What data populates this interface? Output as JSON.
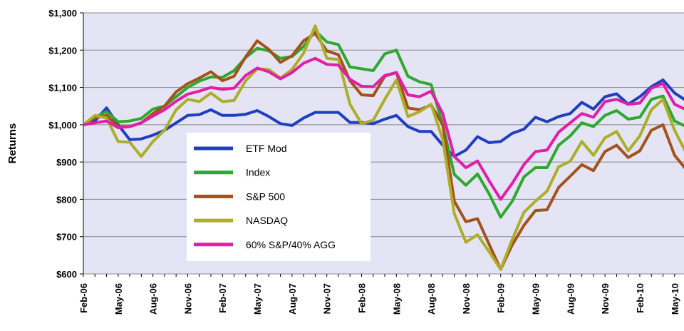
{
  "chart_data": {
    "type": "line",
    "y_label": "Returns",
    "categories": [
      "Feb-06",
      null,
      null,
      "May-06",
      null,
      null,
      "Aug-06",
      null,
      null,
      "Nov-06",
      null,
      null,
      "Feb-07",
      null,
      null,
      "May-07",
      null,
      null,
      "Aug-07",
      null,
      null,
      "Nov-07",
      null,
      null,
      "Feb-08",
      null,
      null,
      "May-08",
      null,
      null,
      "Aug-08",
      null,
      null,
      "Nov-08",
      null,
      null,
      "Feb-09",
      null,
      null,
      "May-09",
      null,
      null,
      "Aug-09",
      null,
      null,
      "Nov-09",
      null,
      null,
      "Feb-10",
      null,
      null,
      "May-10",
      null
    ],
    "ylim": [
      600,
      1300
    ],
    "yticks": [
      {
        "value": 600,
        "label": "$600"
      },
      {
        "value": 700,
        "label": "$700"
      },
      {
        "value": 800,
        "label": "$800"
      },
      {
        "value": 900,
        "label": "$900"
      },
      {
        "value": 1000,
        "label": "$1,000"
      },
      {
        "value": 1100,
        "label": "$1,100"
      },
      {
        "value": 1200,
        "label": "$1,200"
      },
      {
        "value": 1300,
        "label": "$1,300"
      }
    ],
    "grid": true,
    "legend": "center-left",
    "series": [
      {
        "name": "ETF Mod",
        "color": "#1f3fbf",
        "values": [
          1000,
          1010,
          1045,
          1000,
          960,
          962,
          972,
          985,
          1005,
          1025,
          1027,
          1040,
          1025,
          1025,
          1028,
          1038,
          1022,
          1003,
          998,
          1018,
          1033,
          1033,
          1033,
          1006,
          1006,
          1003,
          1015,
          1025,
          995,
          982,
          982,
          945,
          915,
          932,
          968,
          952,
          955,
          977,
          988,
          1020,
          1008,
          1022,
          1030,
          1060,
          1042,
          1075,
          1083,
          1055,
          1075,
          1102,
          1120,
          1085,
          1065
        ]
      },
      {
        "name": "Index",
        "color": "#2ea82e",
        "values": [
          1000,
          1020,
          1035,
          1008,
          1010,
          1017,
          1042,
          1050,
          1075,
          1100,
          1117,
          1128,
          1127,
          1145,
          1180,
          1205,
          1198,
          1178,
          1183,
          1210,
          1252,
          1222,
          1215,
          1155,
          1150,
          1145,
          1190,
          1200,
          1130,
          1115,
          1108,
          1000,
          867,
          838,
          868,
          815,
          752,
          795,
          860,
          885,
          885,
          945,
          970,
          1005,
          995,
          1025,
          1038,
          1015,
          1020,
          1068,
          1077,
          1010,
          995
        ]
      },
      {
        "name": "S&P 500",
        "color": "#a3521a",
        "values": [
          1000,
          1018,
          1025,
          995,
          995,
          1005,
          1030,
          1050,
          1088,
          1110,
          1125,
          1142,
          1118,
          1130,
          1182,
          1225,
          1202,
          1167,
          1185,
          1225,
          1245,
          1198,
          1188,
          1118,
          1080,
          1078,
          1130,
          1140,
          1045,
          1040,
          1053,
          1000,
          795,
          740,
          748,
          680,
          612,
          678,
          730,
          770,
          772,
          832,
          862,
          893,
          877,
          928,
          945,
          912,
          930,
          985,
          1000,
          918,
          880
        ]
      },
      {
        "name": "NASDAQ",
        "color": "#adad2a",
        "values": [
          1000,
          1025,
          1018,
          955,
          953,
          915,
          955,
          985,
          1040,
          1068,
          1062,
          1085,
          1062,
          1065,
          1118,
          1150,
          1148,
          1125,
          1148,
          1192,
          1265,
          1178,
          1175,
          1055,
          1003,
          1012,
          1068,
          1120,
          1022,
          1035,
          1055,
          960,
          762,
          685,
          705,
          660,
          612,
          693,
          765,
          795,
          822,
          887,
          902,
          955,
          918,
          965,
          982,
          930,
          970,
          1040,
          1068,
          985,
          925
        ]
      },
      {
        "name": "60% S&P/40% AGG",
        "color": "#e01fa8",
        "values": [
          1000,
          1005,
          1010,
          992,
          995,
          1005,
          1023,
          1040,
          1063,
          1082,
          1090,
          1100,
          1095,
          1098,
          1132,
          1152,
          1142,
          1123,
          1140,
          1165,
          1178,
          1162,
          1160,
          1122,
          1103,
          1102,
          1132,
          1140,
          1080,
          1075,
          1090,
          1030,
          915,
          885,
          903,
          850,
          800,
          843,
          893,
          928,
          932,
          980,
          1005,
          1030,
          1020,
          1062,
          1068,
          1055,
          1058,
          1098,
          1110,
          1055,
          1040
        ]
      }
    ]
  }
}
